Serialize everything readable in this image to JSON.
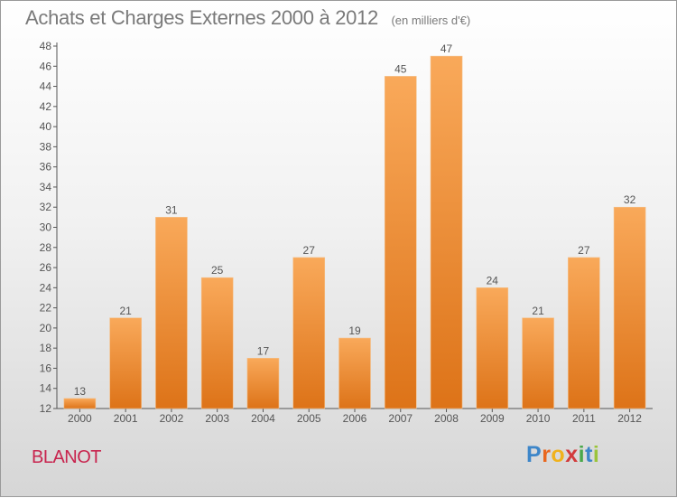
{
  "header": {
    "title": "Achats et Charges Externes 2000 à 2012",
    "unit": "(en milliers d'€)"
  },
  "footer": {
    "commune": "BLANOT",
    "logo_letters": [
      "P",
      "r",
      "o",
      "x",
      "i",
      "t",
      "i"
    ]
  },
  "colors": {
    "bar_light": "#f9a95a",
    "bar_dark": "#dd7318",
    "logo": [
      "#3d86c9",
      "#e9671e",
      "#f0b21d",
      "#d23b3b",
      "#4aa84a",
      "#3d86c9",
      "#9bc43b"
    ]
  },
  "chart_data": {
    "type": "bar",
    "title": "Achats et Charges Externes 2000 à 2012",
    "subtitle": "(en milliers d'€)",
    "categories": [
      "2000",
      "2001",
      "2002",
      "2003",
      "2004",
      "2005",
      "2006",
      "2007",
      "2008",
      "2009",
      "2010",
      "2011",
      "2012"
    ],
    "values": [
      13,
      21,
      31,
      25,
      17,
      27,
      19,
      45,
      47,
      24,
      21,
      27,
      32
    ],
    "ylim": [
      12,
      48
    ],
    "yticks": [
      12,
      14,
      16,
      18,
      20,
      22,
      24,
      26,
      28,
      30,
      32,
      34,
      36,
      38,
      40,
      42,
      44,
      46,
      48
    ],
    "grid": false,
    "legend": "none"
  }
}
